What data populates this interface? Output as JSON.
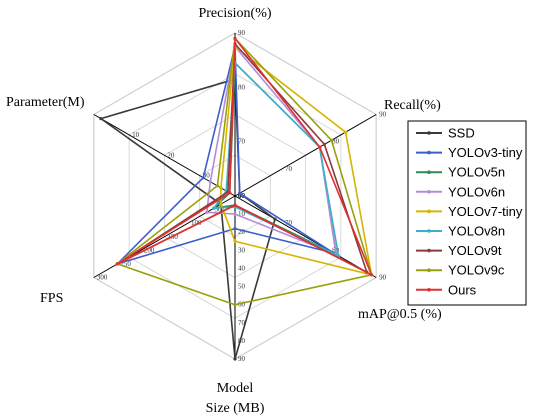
{
  "chart_data": {
    "type": "radar",
    "title": "",
    "axes": [
      {
        "name": "Precision(%)",
        "min": 60,
        "max": 90,
        "ticks": [
          "60",
          "70",
          "80",
          "90"
        ]
      },
      {
        "name": "Recall(%)",
        "min": 60,
        "max": 90,
        "ticks": [
          "60",
          "70",
          "80",
          "90"
        ]
      },
      {
        "name": "mAP@0.5 (%)",
        "min": 60,
        "max": 90,
        "ticks": [
          "60",
          "70",
          "80",
          "90"
        ]
      },
      {
        "name": "Model Size (MB)",
        "min": 0,
        "max": 90,
        "reversed": false,
        "ticks": [
          "10",
          "20",
          "30",
          "40",
          "50",
          "60",
          "70",
          "80",
          "90"
        ]
      },
      {
        "name": "FPS",
        "min": 0,
        "max": 300,
        "ticks": [
          "50",
          "100",
          "150",
          "200",
          "250",
          "300"
        ]
      },
      {
        "name": "Parameter(M)",
        "min": 0,
        "max": 40,
        "reversed": true,
        "ticks": [
          "10",
          "20",
          "30",
          "40"
        ]
      }
    ],
    "series": [
      {
        "name": "SSD",
        "color": "#3a3a3a",
        "values": [
          81.5,
          61,
          68.5,
          90,
          30,
          2
        ]
      },
      {
        "name": "YOLOv3-tiny",
        "color": "#3a5fcd",
        "values": [
          87.5,
          61,
          81,
          18,
          250,
          31
        ]
      },
      {
        "name": "YOLOv5n",
        "color": "#2e8b57",
        "values": [
          84.5,
          78,
          81.5,
          5,
          45,
          38.5
        ]
      },
      {
        "name": "YOLOv6n",
        "color": "#b58adb",
        "values": [
          87.5,
          78,
          81.5,
          10,
          60,
          33
        ]
      },
      {
        "name": "YOLOv7-tiny",
        "color": "#d6b400",
        "values": [
          87.5,
          83.5,
          89,
          25,
          30,
          36
        ]
      },
      {
        "name": "YOLOv8n",
        "color": "#3bb0c9",
        "values": [
          84.5,
          78,
          82,
          6,
          45,
          37.5
        ]
      },
      {
        "name": "YOLOv9t",
        "color": "#8b3a3a",
        "values": [
          88,
          79,
          88,
          5,
          250,
          38
        ]
      },
      {
        "name": "YOLOv9c",
        "color": "#9aa00a",
        "values": [
          89,
          80.5,
          89,
          60,
          250,
          35
        ]
      },
      {
        "name": "Ours",
        "color": "#e03030",
        "values": [
          89,
          78,
          89,
          5,
          250,
          38.5
        ]
      }
    ],
    "legend_position": "right",
    "grid": true
  }
}
